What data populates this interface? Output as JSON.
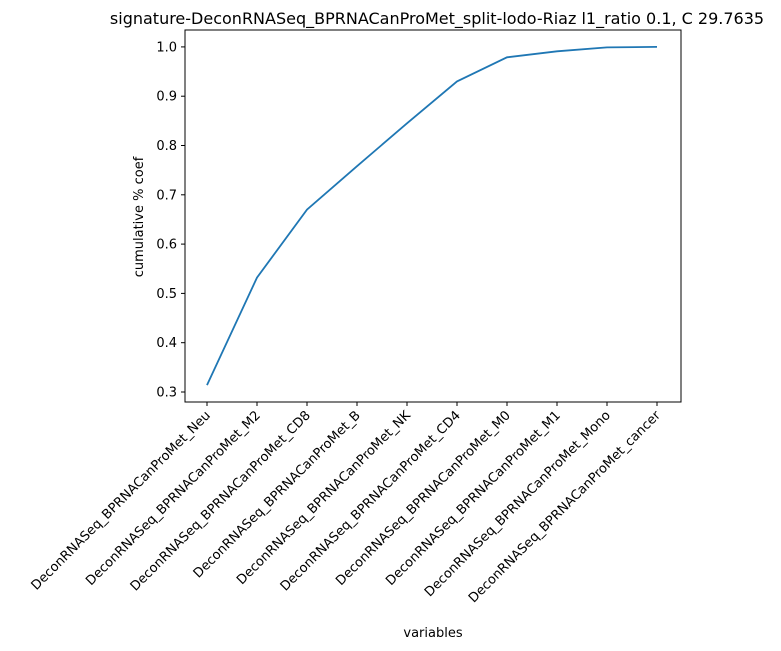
{
  "chart_data": {
    "type": "line",
    "title": "signature-DeconRNASeq_BPRNACanProMet_split-lodo-Riaz l1_ratio 0.1, C 29.7635",
    "xlabel": "variables",
    "ylabel": "cumulative % coef",
    "categories": [
      "DeconRNASeq_BPRNACanProMet_Neu",
      "DeconRNASeq_BPRNACanProMet_M2",
      "DeconRNASeq_BPRNACanProMet_CD8",
      "DeconRNASeq_BPRNACanProMet_B",
      "DeconRNASeq_BPRNACanProMet_NK",
      "DeconRNASeq_BPRNACanProMet_CD4",
      "DeconRNASeq_BPRNACanProMet_M0",
      "DeconRNASeq_BPRNACanProMet_M1",
      "DeconRNASeq_BPRNACanProMet_Mono",
      "DeconRNASeq_BPRNACanProMet_cancer"
    ],
    "series": [
      {
        "values": [
          0.314,
          0.532,
          0.67,
          0.758,
          0.845,
          0.93,
          0.979,
          0.991,
          0.999,
          1.0
        ]
      }
    ],
    "yticks": [
      0.3,
      0.4,
      0.5,
      0.6,
      0.7,
      0.8,
      0.9,
      1.0
    ],
    "ytick_labels": [
      "0.3",
      "0.4",
      "0.5",
      "0.6",
      "0.7",
      "0.8",
      "0.9",
      "1.0"
    ],
    "ylim": [
      0.2797,
      1.0343
    ],
    "grid": false,
    "line_color": "#1f77b4"
  }
}
